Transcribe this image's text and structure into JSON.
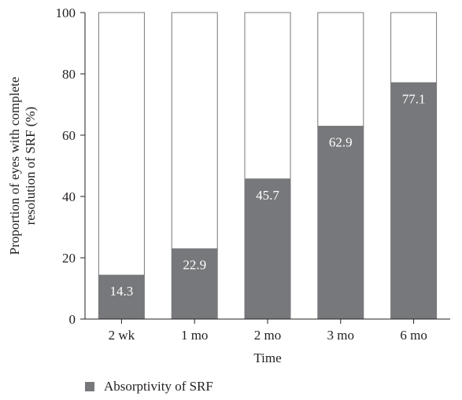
{
  "chart_data": {
    "type": "bar",
    "stacked_to": 100,
    "categories": [
      "2 wk",
      "1 mo",
      "2 mo",
      "3 mo",
      "6 mo"
    ],
    "series": [
      {
        "name": "Absorptivity of SRF",
        "values": [
          14.3,
          22.9,
          45.7,
          62.9,
          77.1
        ],
        "color": "#77787b"
      }
    ],
    "data_labels": [
      "14.3",
      "22.9",
      "45.7",
      "62.9",
      "77.1"
    ],
    "title": "",
    "xlabel": "Time",
    "ylabel": "Proportion of eyes with complete resolution of SRF (%)",
    "ylabel_lines": [
      "Proportion of eyes with complete",
      "resolution of SRF (%)"
    ],
    "ylim": [
      0,
      100
    ],
    "yticks": [
      0,
      20,
      40,
      60,
      80,
      100
    ],
    "grid": false,
    "legend_position": "bottom-left",
    "remainder_color": "#ffffff",
    "outline_color": "#77787b"
  },
  "legend": {
    "label": "Absorptivity of SRF"
  }
}
